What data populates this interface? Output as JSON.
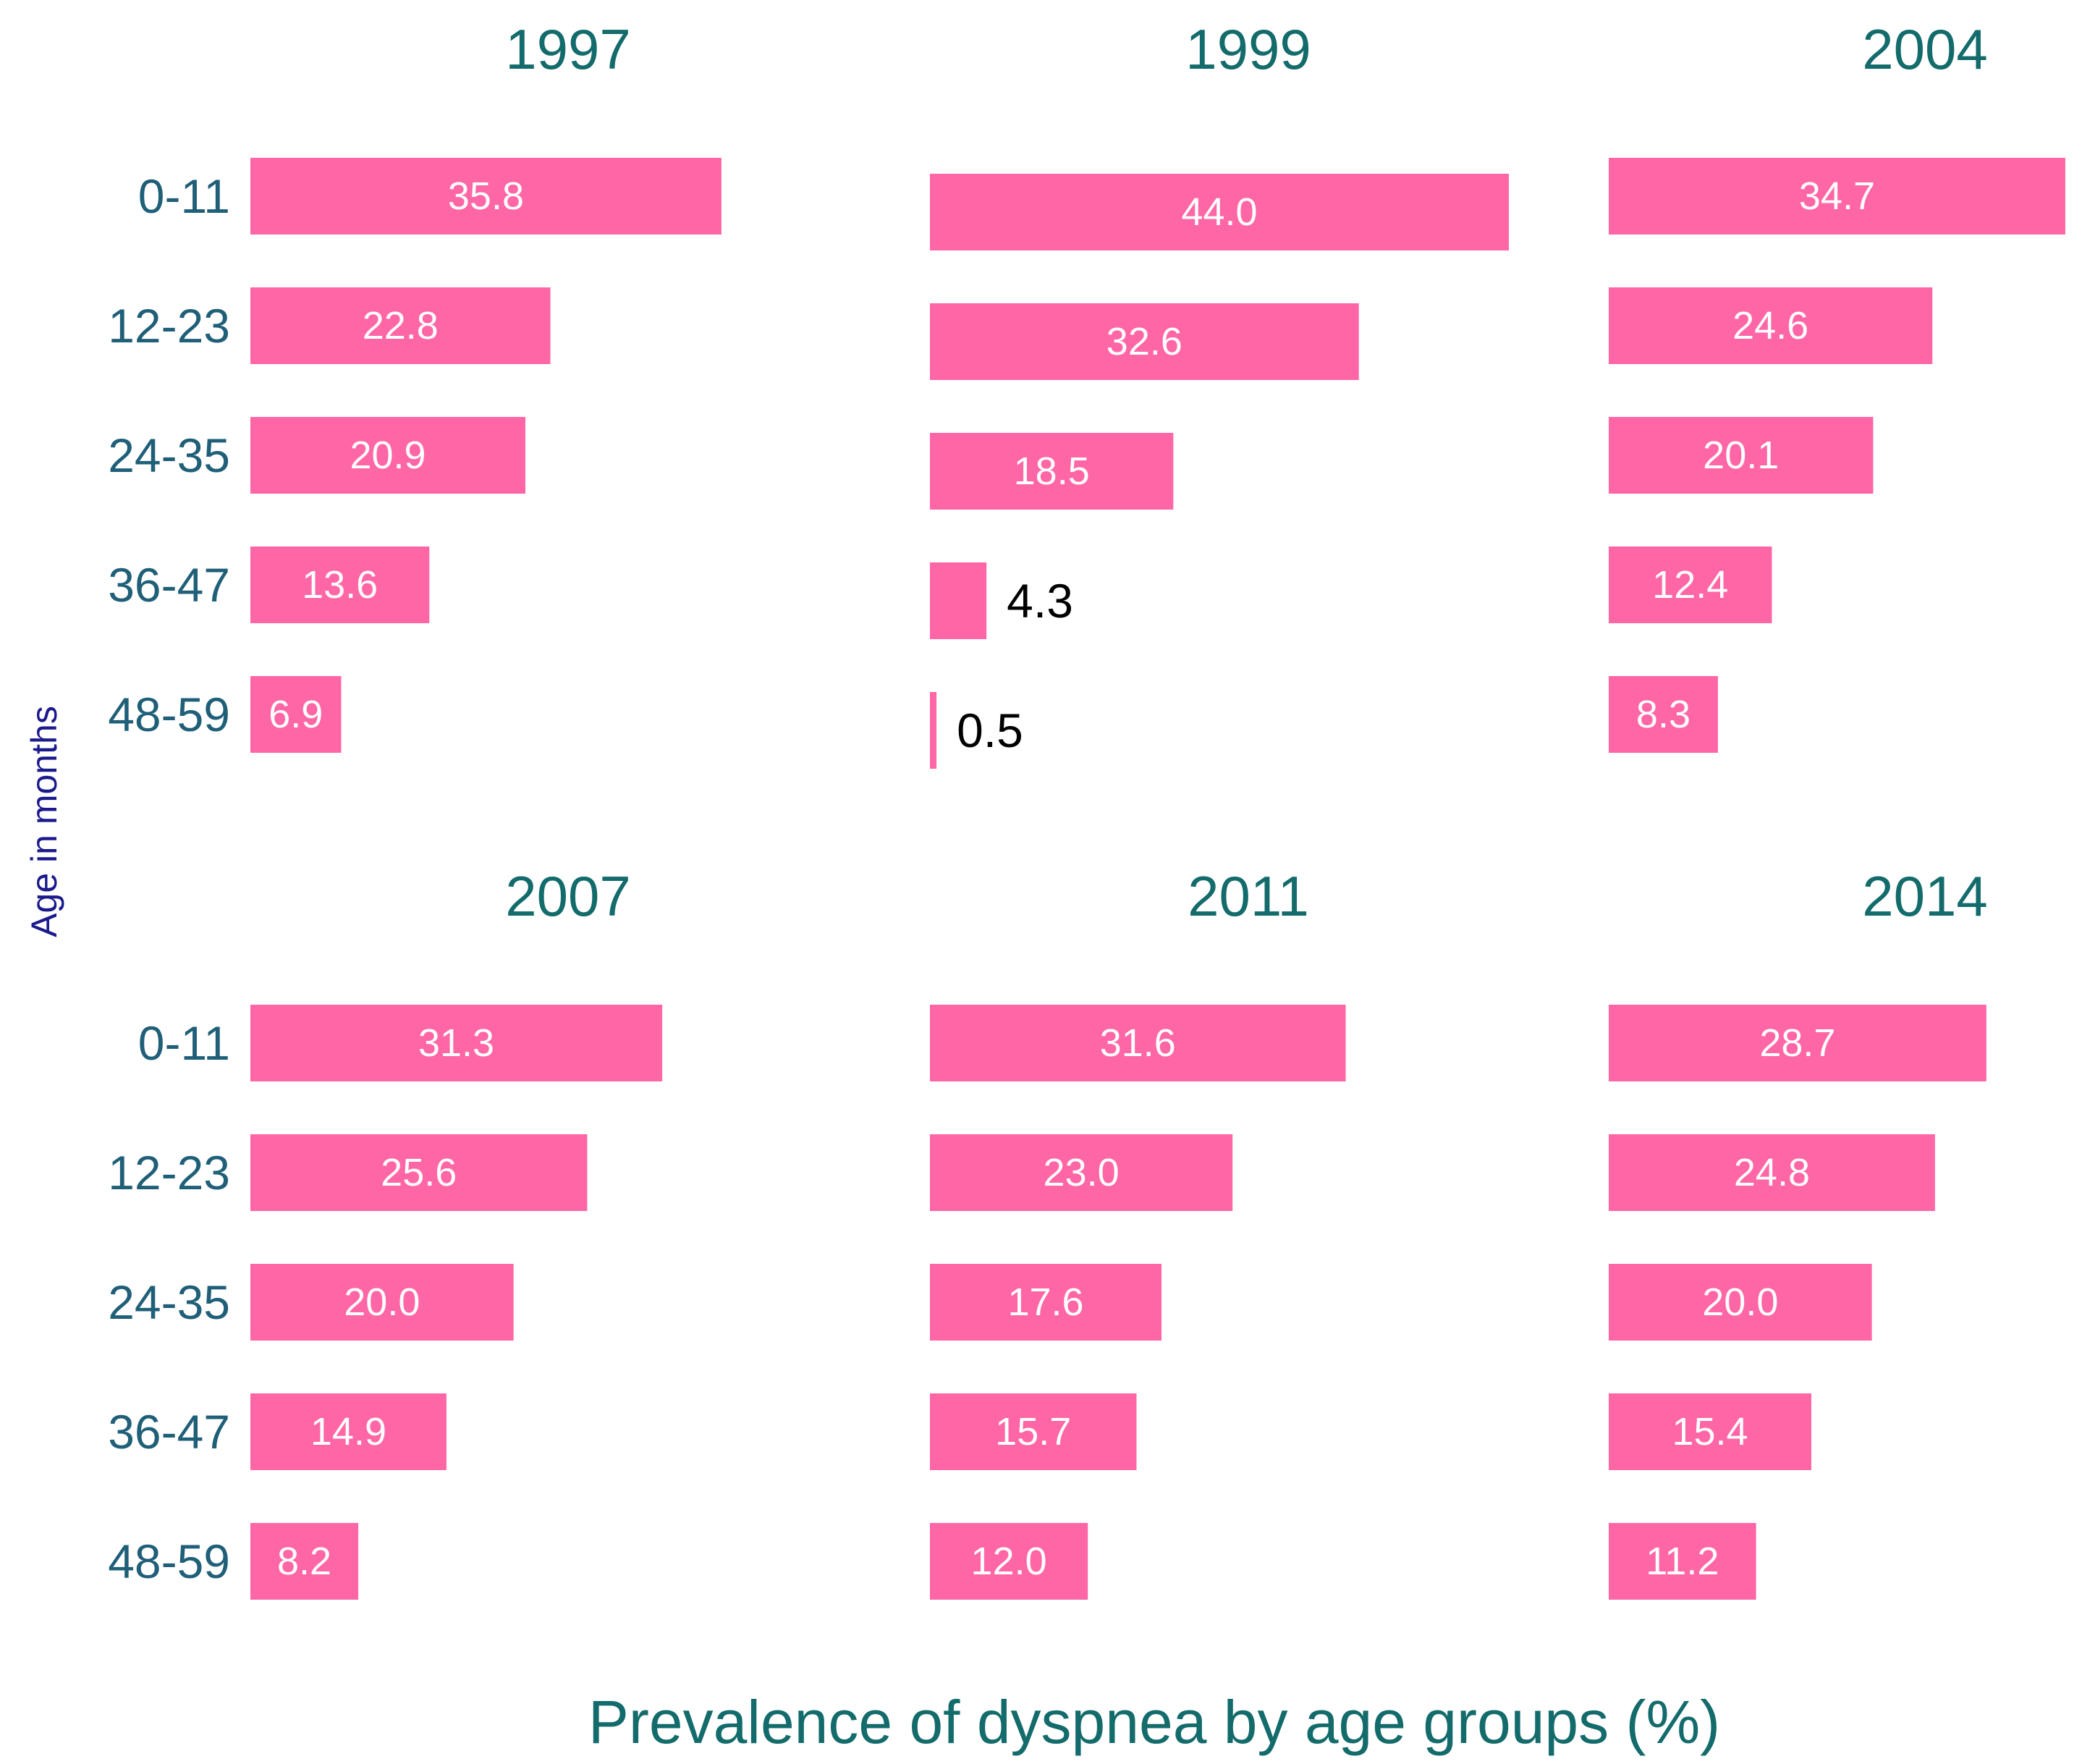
{
  "chart_data": {
    "type": "bar",
    "orientation": "horizontal",
    "xlabel": "Prevalence of dyspnea by age groups (%)",
    "ylabel": "Age in months",
    "categories": [
      "0-11",
      "12-23",
      "24-35",
      "36-47",
      "48-59"
    ],
    "series": [
      {
        "name": "1997",
        "values": [
          35.8,
          22.8,
          20.9,
          13.6,
          6.9
        ]
      },
      {
        "name": "1999",
        "values": [
          44.0,
          32.6,
          18.5,
          4.3,
          0.5
        ]
      },
      {
        "name": "2004",
        "values": [
          34.7,
          24.6,
          20.1,
          12.4,
          8.3
        ]
      },
      {
        "name": "2007",
        "values": [
          31.3,
          25.6,
          20.0,
          14.9,
          8.2
        ]
      },
      {
        "name": "2011",
        "values": [
          31.6,
          23.0,
          17.6,
          15.7,
          12.0
        ]
      },
      {
        "name": "2014",
        "values": [
          28.7,
          24.8,
          20.0,
          15.4,
          11.2
        ]
      }
    ],
    "value_labels": [
      [
        "35.8",
        "22.8",
        "20.9",
        "13.6",
        "6.9"
      ],
      [
        "44.0",
        "32.6",
        "18.5",
        "4.3",
        "0.5"
      ],
      [
        "34.7",
        "24.6",
        "20.1",
        "12.4",
        "8.3"
      ],
      [
        "31.3",
        "25.6",
        "20.0",
        "14.9",
        "8.2"
      ],
      [
        "31.6",
        "23.0",
        "17.6",
        "15.7",
        "12.0"
      ],
      [
        "28.7",
        "24.8",
        "20.0",
        "15.4",
        "11.2"
      ]
    ],
    "bar_color": "#ff66a6",
    "xlim": [
      0,
      44.0
    ],
    "grid": false
  }
}
